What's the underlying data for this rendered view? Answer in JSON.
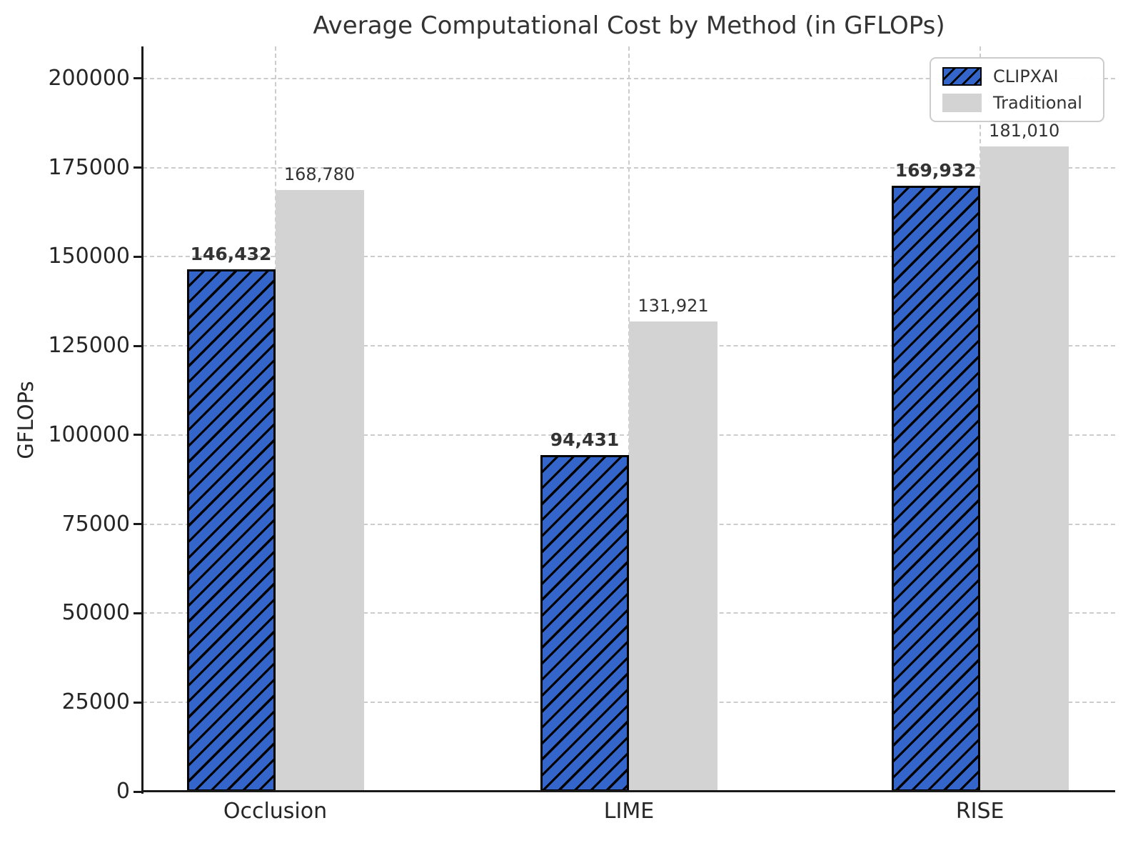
{
  "chart_data": {
    "type": "bar",
    "title": "Average Computational Cost by Method (in GFLOPs)",
    "ylabel": "GFLOPs",
    "xlabel": "",
    "categories": [
      "Occlusion",
      "LIME",
      "RISE"
    ],
    "series": [
      {
        "name": "CLIPXAI",
        "values": [
          146432,
          94431,
          169932
        ],
        "value_labels": [
          "146,432",
          "94,431",
          "169,932"
        ],
        "color": "#3465CB",
        "hatch": "diagonal",
        "label_bold": true
      },
      {
        "name": "Traditional",
        "values": [
          168780,
          131921,
          181010
        ],
        "value_labels": [
          "168,780",
          "131,921",
          "181,010"
        ],
        "color": "#D3D3D3",
        "hatch": "none",
        "label_bold": false
      }
    ],
    "yticks": [
      0,
      25000,
      50000,
      75000,
      100000,
      125000,
      150000,
      175000,
      200000
    ],
    "ytick_labels": [
      "0",
      "25000",
      "50000",
      "75000",
      "100000",
      "125000",
      "150000",
      "175000",
      "200000"
    ],
    "ylim": [
      0,
      209000
    ],
    "grid": "dashed-both-axes",
    "legend_position": "upper-right"
  },
  "colors": {
    "background": "#FFFFFF",
    "axis": "#1A1A1A",
    "grid": "#CCCCCC",
    "text": "#333333",
    "tick_text": "#262626",
    "hatch": "#000000"
  }
}
